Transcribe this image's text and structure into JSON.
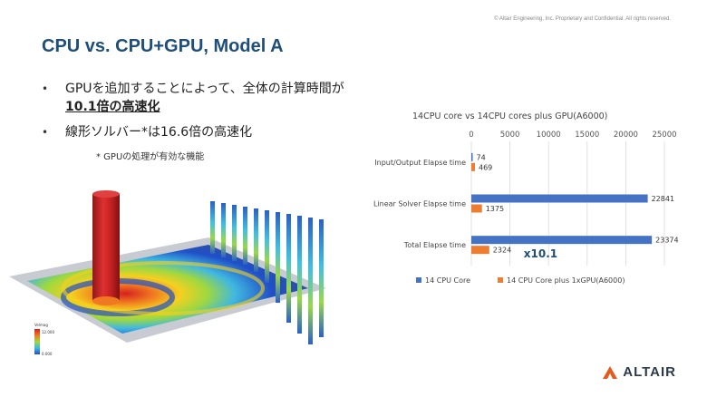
{
  "copyright": "© Altair Engineering, Inc. Proprietary and Confidential. All rights reserved.",
  "title": "CPU vs. CPU+GPU, Model A",
  "bullets": [
    {
      "line1": "GPUを追加することによって、全体の計算時間が",
      "line2": "10.1倍の高速化"
    },
    {
      "line1": "線形ソルバー*は16.6倍の高速化",
      "line2": ""
    }
  ],
  "footnote": "* GPUの処理が有効な機能",
  "legend_bar": {
    "title": "Velmag",
    "max": "12.000",
    "min": "0.000"
  },
  "logo_text": "ALTAIR",
  "colors": {
    "title": "#1f4e79",
    "cpu": "#4472c4",
    "gpu": "#ed7d31",
    "logo_icon": "#e35b1e"
  },
  "chart_data": {
    "type": "bar",
    "orientation": "horizontal",
    "title": "14CPU core vs 14CPU cores plus GPU(A6000)",
    "categories": [
      "Input/Output Elapse time",
      "Linear Solver Elapse time",
      "Total Elapse time"
    ],
    "series": [
      {
        "name": "14 CPU Core",
        "values": [
          74,
          22841,
          23374
        ]
      },
      {
        "name": "14 CPU Core plus 1xGPU(A6000)",
        "values": [
          469,
          1375,
          2324
        ]
      }
    ],
    "xlim": [
      0,
      25000
    ],
    "xticks": [
      0,
      5000,
      10000,
      15000,
      20000,
      25000
    ],
    "annotation": "x10.1",
    "grid": true,
    "legend": "bottom",
    "axis_position": "top"
  }
}
